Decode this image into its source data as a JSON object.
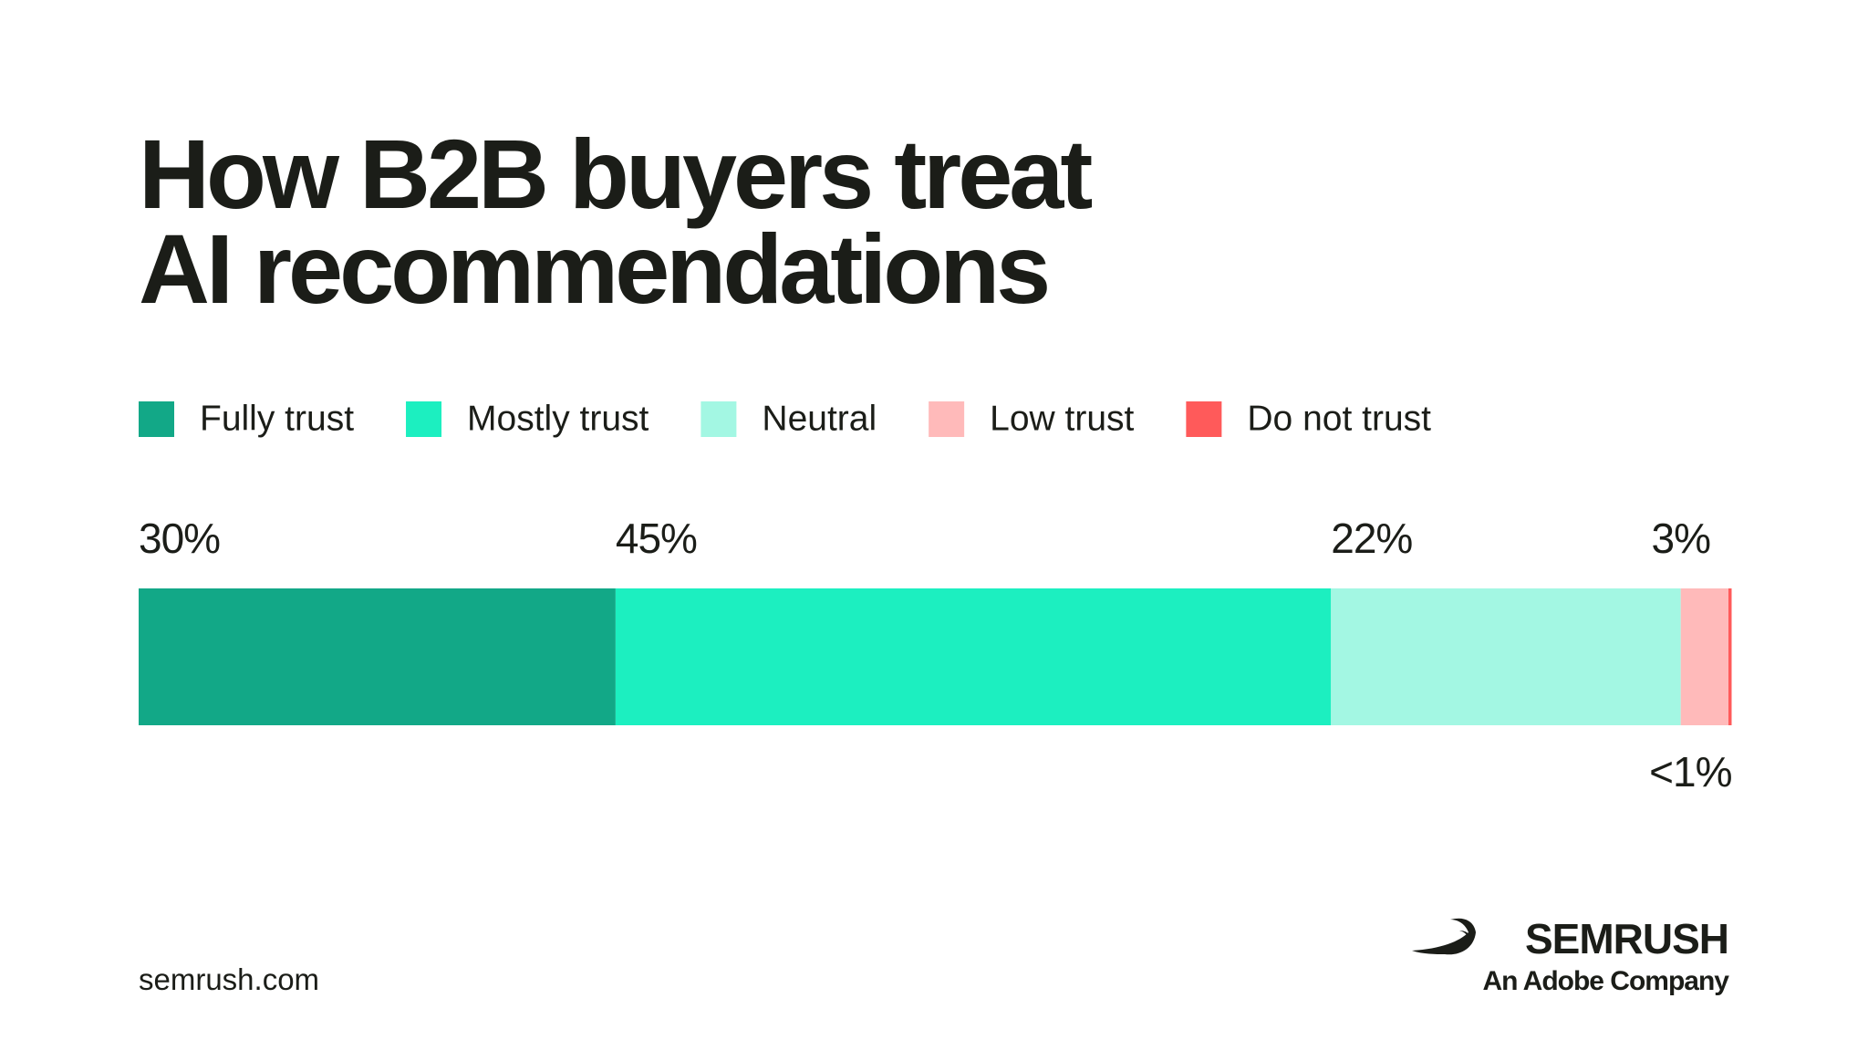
{
  "chart_data": {
    "type": "stacked_bar",
    "title": "How B2B buyers treat AI recommendations",
    "xlim": [
      0,
      100
    ],
    "series": [
      {
        "name": "Fully trust",
        "color": "#12a887",
        "values": [
          30
        ],
        "value_labels": [
          "30%"
        ]
      },
      {
        "name": "Mostly trust",
        "color": "#1cefc0",
        "values": [
          45
        ],
        "value_labels": [
          "45%"
        ]
      },
      {
        "name": "Neutral",
        "color": "#a3f7e3",
        "values": [
          22
        ],
        "value_labels": [
          "22%"
        ]
      },
      {
        "name": "Low trust",
        "color": "#ffbaba",
        "values": [
          3
        ],
        "value_labels": [
          "3%"
        ]
      },
      {
        "name": "Do not trust",
        "color": "#ff5a5a",
        "values": [
          0.2
        ],
        "value_labels": [
          "<1%"
        ]
      }
    ]
  },
  "footer": {
    "source": "semrush.com",
    "brand": "SEMRUSH",
    "tagline": "An Adobe Company"
  }
}
